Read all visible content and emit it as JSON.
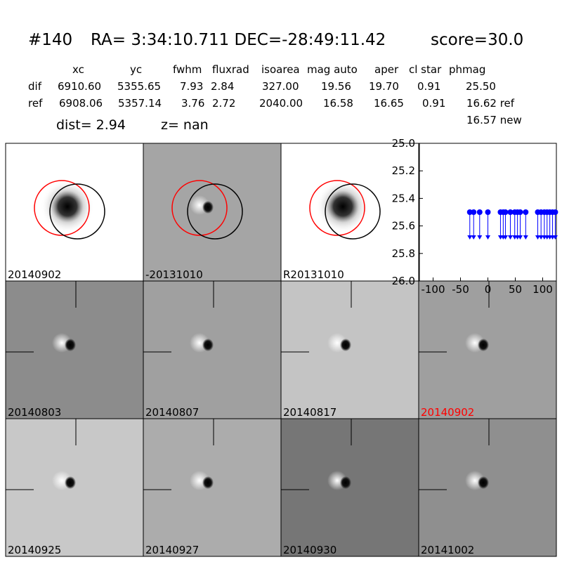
{
  "header": {
    "id": "#140",
    "coords": "RA= 3:34:10.711 DEC=-28:49:11.42",
    "score": "score=30.0"
  },
  "table": {
    "columns": [
      "xc",
      "yc",
      "fwhm",
      "fluxrad",
      "isoarea",
      "mag auto",
      "aper",
      "cl star",
      "phmag"
    ],
    "rows": [
      [
        "dif",
        "6910.60",
        "5355.65",
        "7.93",
        "2.84",
        "327.00",
        "19.56",
        "19.70",
        "0.91",
        "25.50"
      ],
      [
        "ref",
        "6908.06",
        "5357.14",
        "3.76",
        "2.72",
        "2040.00",
        "16.58",
        "16.65",
        "0.91",
        "16.62 ref"
      ]
    ],
    "extra": "16.57 new"
  },
  "dist": {
    "dist": "dist=  2.94",
    "z": "z=   nan"
  },
  "panels": [
    "20140902",
    "-20131010",
    "R20131010",
    "20140803",
    "20140807",
    "20140817",
    "20140902",
    "20140925",
    "20140927",
    "20140930",
    "20141002"
  ],
  "chart_data": {
    "type": "scatter",
    "color": "#0000ff",
    "x": [
      -33,
      -26,
      -15,
      0,
      23,
      28,
      32,
      41,
      49,
      54,
      59,
      69,
      91,
      97,
      103,
      108,
      113,
      118,
      123
    ],
    "values": [
      25.5,
      25.5,
      25.5,
      25.5,
      25.5,
      25.5,
      25.5,
      25.5,
      25.5,
      25.5,
      25.5,
      25.5,
      25.5,
      25.5,
      25.5,
      25.5,
      25.5,
      25.5,
      25.5
    ],
    "xlim": [
      -125,
      125
    ],
    "ylim": [
      26.0,
      25.0
    ],
    "xticks": [
      -100,
      -50,
      0,
      50,
      100
    ],
    "yticks": [
      {
        "value": 25.0,
        "label": "25.0"
      },
      25.2,
      25.4,
      25.6,
      25.8,
      {
        "value": 26.0,
        "label": "26.0"
      }
    ]
  }
}
